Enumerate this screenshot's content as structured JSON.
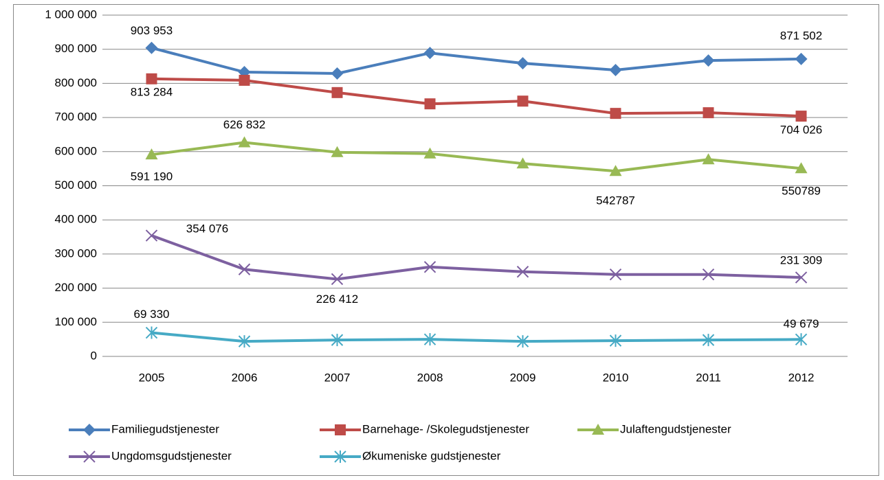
{
  "chart_data": {
    "type": "line",
    "categories": [
      "2005",
      "2006",
      "2007",
      "2008",
      "2009",
      "2010",
      "2011",
      "2012"
    ],
    "series": [
      {
        "name": "Familiegudstjenester",
        "color": "#4a7ebb",
        "marker": "diamond",
        "values": [
          903953,
          833000,
          829000,
          889000,
          859000,
          839000,
          867000,
          871502
        ],
        "value_labels": [
          "903 953",
          null,
          null,
          null,
          null,
          null,
          null,
          "871 502"
        ]
      },
      {
        "name": "Barnehage- /Skolegudstjenester",
        "color": "#be4b48",
        "marker": "square",
        "values": [
          813284,
          809000,
          773000,
          740000,
          748000,
          712000,
          714000,
          704026
        ],
        "value_labels": [
          "813 284",
          null,
          null,
          null,
          null,
          null,
          null,
          "704 026"
        ]
      },
      {
        "name": "Julaftengudstjenester",
        "color": "#98b954",
        "marker": "triangle",
        "values": [
          591190,
          626832,
          598000,
          594000,
          565000,
          542787,
          577000,
          550789
        ],
        "value_labels": [
          "591 190",
          "626 832",
          null,
          null,
          null,
          "542787",
          null,
          "550789"
        ]
      },
      {
        "name": "Ungdomsgudstjenester",
        "color": "#7d60a0",
        "marker": "x",
        "values": [
          354076,
          255000,
          226412,
          262000,
          248000,
          240000,
          240000,
          231309
        ],
        "value_labels": [
          "354 076",
          null,
          "226 412",
          null,
          null,
          null,
          null,
          "231 309"
        ]
      },
      {
        "name": "Økumeniske gudstjenester",
        "color": "#46aac5",
        "marker": "star",
        "values": [
          69330,
          44000,
          48000,
          50000,
          44000,
          46000,
          48000,
          49679
        ],
        "value_labels": [
          "69 330",
          null,
          null,
          null,
          null,
          null,
          null,
          "49 679"
        ]
      }
    ],
    "ylim": [
      0,
      1000000
    ],
    "yticks": [
      0,
      {
        "value": 100000,
        "label": "100 000"
      },
      {
        "value": 200000,
        "label": "200 000"
      },
      {
        "value": 300000,
        "label": "300 000"
      },
      {
        "value": 400000,
        "label": "400 000"
      },
      {
        "value": 500000,
        "label": "500 000"
      },
      {
        "value": 600000,
        "label": "600 000"
      },
      {
        "value": 700000,
        "label": "700 000"
      },
      {
        "value": 800000,
        "label": "800 000"
      },
      {
        "value": 900000,
        "label": "900 000"
      },
      {
        "value": 1000000,
        "label": "1 000 000"
      }
    ],
    "grid": true,
    "legend": "bottom"
  }
}
